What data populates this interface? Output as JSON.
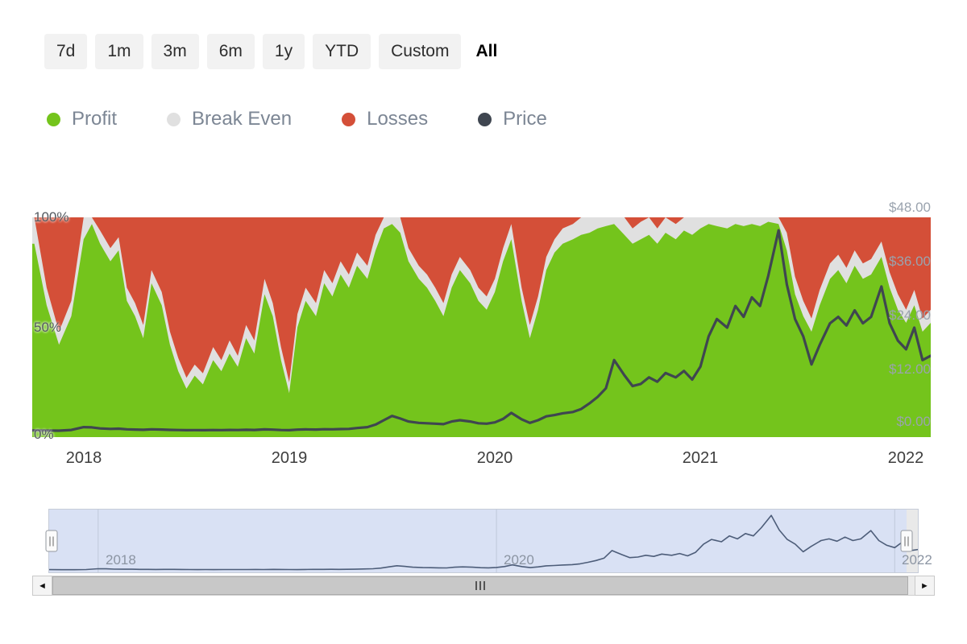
{
  "page": {
    "background": "#ffffff"
  },
  "time_range": {
    "buttons": [
      {
        "label": "7d",
        "active": false
      },
      {
        "label": "1m",
        "active": false
      },
      {
        "label": "3m",
        "active": false
      },
      {
        "label": "6m",
        "active": false
      },
      {
        "label": "1y",
        "active": false
      },
      {
        "label": "YTD",
        "active": false
      },
      {
        "label": "Custom",
        "active": false
      },
      {
        "label": "All",
        "active": true
      }
    ]
  },
  "legend": {
    "items": [
      {
        "label": "Profit",
        "color": "#74c41c"
      },
      {
        "label": "Break Even",
        "color": "#e0e0e0"
      },
      {
        "label": "Losses",
        "color": "#d44f38"
      },
      {
        "label": "Price",
        "color": "#3f4650"
      }
    ]
  },
  "chart_data": {
    "type": "area",
    "subtype": "percent-stacked-with-price-line",
    "title": "",
    "x_domain": [
      2017.75,
      2022.12
    ],
    "x": [
      2017.76,
      2017.82,
      2017.88,
      2017.94,
      2018.0,
      2018.04,
      2018.08,
      2018.13,
      2018.17,
      2018.21,
      2018.25,
      2018.29,
      2018.33,
      2018.38,
      2018.42,
      2018.46,
      2018.5,
      2018.54,
      2018.58,
      2018.63,
      2018.67,
      2018.71,
      2018.75,
      2018.79,
      2018.83,
      2018.88,
      2018.92,
      2018.96,
      2019.0,
      2019.04,
      2019.08,
      2019.13,
      2019.17,
      2019.21,
      2019.25,
      2019.29,
      2019.33,
      2019.38,
      2019.42,
      2019.46,
      2019.5,
      2019.54,
      2019.58,
      2019.63,
      2019.67,
      2019.71,
      2019.75,
      2019.79,
      2019.83,
      2019.88,
      2019.92,
      2019.96,
      2020.0,
      2020.04,
      2020.08,
      2020.13,
      2020.17,
      2020.21,
      2020.25,
      2020.29,
      2020.33,
      2020.38,
      2020.42,
      2020.46,
      2020.5,
      2020.54,
      2020.58,
      2020.63,
      2020.67,
      2020.71,
      2020.75,
      2020.79,
      2020.83,
      2020.88,
      2020.92,
      2020.96,
      2021.0,
      2021.04,
      2021.08,
      2021.13,
      2021.17,
      2021.21,
      2021.25,
      2021.29,
      2021.33,
      2021.38,
      2021.42,
      2021.46,
      2021.5,
      2021.54,
      2021.58,
      2021.63,
      2021.67,
      2021.71,
      2021.75,
      2021.79,
      2021.83,
      2021.88,
      2021.92,
      2021.96,
      2022.0,
      2022.04,
      2022.08,
      2022.12
    ],
    "series": [
      {
        "name": "Profit",
        "type": "area_pct",
        "color": "#74c41c",
        "values": [
          88,
          60,
          42,
          55,
          90,
          97,
          88,
          80,
          85,
          62,
          55,
          45,
          70,
          60,
          42,
          30,
          22,
          28,
          24,
          35,
          30,
          38,
          32,
          45,
          38,
          65,
          55,
          35,
          20,
          50,
          62,
          55,
          70,
          64,
          74,
          68,
          78,
          72,
          85,
          95,
          97,
          93,
          80,
          72,
          68,
          62,
          55,
          68,
          76,
          70,
          62,
          58,
          66,
          80,
          90,
          62,
          45,
          58,
          76,
          84,
          88,
          90,
          92,
          93,
          95,
          96,
          97,
          92,
          88,
          90,
          92,
          88,
          93,
          90,
          94,
          92,
          95,
          97,
          96,
          95,
          97,
          96,
          97,
          96,
          98,
          97,
          85,
          65,
          55,
          48,
          60,
          72,
          76,
          70,
          78,
          72,
          74,
          82,
          68,
          58,
          52,
          60,
          48,
          52
        ]
      },
      {
        "name": "Break Even",
        "type": "area_pct",
        "color": "#e0e0e0",
        "values": [
          12,
          8,
          6,
          7,
          10,
          3,
          6,
          6,
          6,
          6,
          6,
          6,
          6,
          6,
          6,
          6,
          5,
          5,
          5,
          6,
          5,
          6,
          5,
          6,
          6,
          7,
          6,
          6,
          5,
          6,
          6,
          6,
          6,
          6,
          6,
          6,
          6,
          6,
          7,
          5,
          3,
          7,
          6,
          6,
          6,
          6,
          6,
          6,
          6,
          6,
          6,
          6,
          6,
          6,
          7,
          6,
          6,
          6,
          6,
          6,
          7,
          7,
          8,
          7,
          5,
          4,
          3,
          8,
          7,
          8,
          8,
          7,
          7,
          7,
          6,
          8,
          5,
          3,
          4,
          5,
          3,
          4,
          3,
          4,
          2,
          3,
          8,
          8,
          7,
          6,
          7,
          7,
          7,
          7,
          7,
          7,
          7,
          7,
          7,
          7,
          6,
          7,
          6,
          6
        ]
      },
      {
        "name": "Losses",
        "type": "area_pct",
        "color": "#d44f38",
        "values": [
          0,
          32,
          52,
          38,
          0,
          0,
          6,
          14,
          9,
          32,
          39,
          49,
          24,
          34,
          52,
          64,
          73,
          67,
          71,
          59,
          65,
          56,
          63,
          49,
          56,
          28,
          39,
          59,
          75,
          44,
          32,
          39,
          24,
          30,
          20,
          26,
          16,
          22,
          8,
          0,
          0,
          0,
          14,
          22,
          26,
          32,
          39,
          26,
          18,
          24,
          32,
          36,
          28,
          14,
          3,
          32,
          49,
          36,
          18,
          10,
          5,
          3,
          0,
          0,
          0,
          0,
          0,
          0,
          5,
          2,
          0,
          5,
          0,
          3,
          0,
          0,
          0,
          0,
          0,
          0,
          0,
          0,
          0,
          0,
          0,
          0,
          7,
          27,
          38,
          46,
          33,
          21,
          17,
          23,
          15,
          21,
          19,
          11,
          25,
          35,
          42,
          33,
          46,
          42
        ]
      },
      {
        "name": "Price",
        "type": "line",
        "axis": "right",
        "color": "#3f4650",
        "values": [
          0.25,
          0.2,
          0.18,
          0.35,
          1.0,
          0.95,
          0.7,
          0.6,
          0.65,
          0.5,
          0.45,
          0.4,
          0.5,
          0.45,
          0.38,
          0.33,
          0.3,
          0.32,
          0.3,
          0.34,
          0.32,
          0.36,
          0.33,
          0.4,
          0.36,
          0.48,
          0.42,
          0.34,
          0.29,
          0.42,
          0.48,
          0.45,
          0.52,
          0.5,
          0.56,
          0.6,
          0.8,
          1.0,
          1.6,
          2.6,
          3.6,
          3.0,
          2.3,
          2.0,
          1.9,
          1.8,
          1.7,
          2.3,
          2.6,
          2.3,
          1.9,
          1.8,
          2.1,
          2.9,
          4.3,
          2.8,
          2.0,
          2.6,
          3.5,
          3.8,
          4.2,
          4.5,
          5.2,
          6.5,
          8.0,
          10.0,
          16.5,
          13.0,
          10.5,
          11.0,
          12.5,
          11.5,
          13.5,
          12.5,
          14.0,
          12.0,
          15.0,
          22.0,
          26.0,
          24.0,
          29.0,
          26.5,
          31.0,
          29.0,
          36.0,
          46.5,
          34.0,
          26.0,
          22.0,
          15.5,
          20.0,
          25.0,
          26.5,
          24.5,
          28.0,
          25.0,
          26.5,
          33.5,
          25.0,
          21.0,
          19.0,
          24.0,
          16.5,
          17.5
        ]
      }
    ],
    "yaxis_left": {
      "ticks": [
        "100%",
        "50%",
        "0%"
      ],
      "range": [
        0,
        100
      ]
    },
    "yaxis_right": {
      "ticks": [
        "$48.00",
        "$36.00",
        "$24.00",
        "$12.00",
        "$0.00"
      ],
      "range": [
        0,
        48
      ]
    },
    "xticks": [
      "2018",
      "2019",
      "2020",
      "2021",
      "2022"
    ],
    "grid": false,
    "legend_position": "top",
    "navigator": {
      "labels": [
        "2018",
        "2020",
        "2022"
      ],
      "gridline_years": [
        2018,
        2020,
        2022
      ],
      "selection_color": "#d9e1f4",
      "mask_color": "#e9e9e9",
      "line_color": "#4d5d79",
      "selection_end_ratio": 0.986
    }
  },
  "scrollbar": {
    "left_arrow": "◄",
    "right_arrow": "►"
  }
}
